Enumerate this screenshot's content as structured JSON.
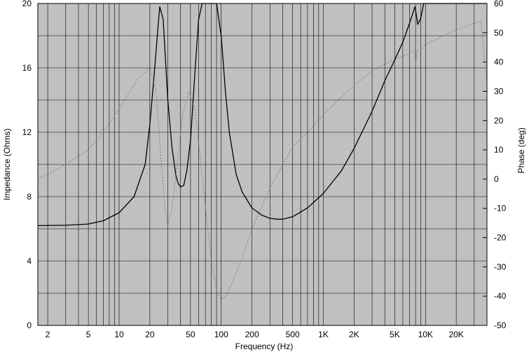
{
  "chart_data": {
    "type": "line",
    "xlabel": "Frequency (Hz)",
    "ylabel": "Impedance (Ohms)",
    "y2label": "Phase (deg)",
    "x_scale": "log",
    "xlim": [
      1.6,
      40000
    ],
    "ylim": [
      0,
      20
    ],
    "y2lim": [
      -50,
      60
    ],
    "grid": true,
    "x_ticks": [
      {
        "value": 2,
        "label": "2"
      },
      {
        "value": 5,
        "label": "5"
      },
      {
        "value": 10,
        "label": "10"
      },
      {
        "value": 20,
        "label": "20"
      },
      {
        "value": 50,
        "label": "50"
      },
      {
        "value": 100,
        "label": "100"
      },
      {
        "value": 200,
        "label": "200"
      },
      {
        "value": 500,
        "label": "500"
      },
      {
        "value": 1000,
        "label": "1K"
      },
      {
        "value": 2000,
        "label": "2K"
      },
      {
        "value": 5000,
        "label": "5K"
      },
      {
        "value": 10000,
        "label": "10K"
      },
      {
        "value": 20000,
        "label": "20K"
      }
    ],
    "y_ticks": [
      {
        "value": 0,
        "label": "0"
      },
      {
        "value": 4,
        "label": "4"
      },
      {
        "value": 8,
        "label": "8"
      },
      {
        "value": 12,
        "label": "12"
      },
      {
        "value": 16,
        "label": "16"
      },
      {
        "value": 20,
        "label": "20"
      }
    ],
    "y2_ticks": [
      {
        "value": 60,
        "label": "60"
      },
      {
        "value": 50,
        "label": "50"
      },
      {
        "value": 40,
        "label": "40"
      },
      {
        "value": 30,
        "label": "30"
      },
      {
        "value": 20,
        "label": "20"
      },
      {
        "value": 10,
        "label": "10"
      },
      {
        "value": 0,
        "label": "0"
      },
      {
        "value": -10,
        "label": "-10"
      },
      {
        "value": -20,
        "label": "-20"
      },
      {
        "value": -30,
        "label": "-30"
      },
      {
        "value": -40,
        "label": "-40"
      },
      {
        "value": -50,
        "label": "-50"
      }
    ],
    "series": [
      {
        "axis": "left",
        "style": "solid",
        "color": "#000000",
        "x": [
          1.6,
          3,
          5,
          7,
          10,
          14,
          18,
          20,
          22,
          24,
          25,
          27,
          30,
          33,
          36,
          38,
          40,
          43,
          46,
          50,
          55,
          60,
          65,
          70,
          80,
          90,
          100,
          110,
          120,
          140,
          160,
          200,
          250,
          300,
          350,
          400,
          500,
          700,
          1000,
          1500,
          2000,
          3000,
          4000,
          5000,
          6000,
          7000,
          7900,
          8400,
          9000,
          9600,
          10000,
          20000,
          40000
        ],
        "y": [
          6.2,
          6.22,
          6.3,
          6.5,
          7.0,
          8.0,
          10.0,
          12.5,
          15.5,
          18.5,
          19.8,
          19.0,
          14.0,
          11.0,
          9.3,
          8.8,
          8.6,
          8.7,
          9.6,
          11.5,
          15.5,
          19.0,
          20,
          20,
          20,
          20,
          18.0,
          14.5,
          12.0,
          9.4,
          8.3,
          7.3,
          6.85,
          6.65,
          6.6,
          6.6,
          6.75,
          7.3,
          8.2,
          9.6,
          11.0,
          13.3,
          15.2,
          16.5,
          17.6,
          18.8,
          19.8,
          18.7,
          19.1,
          20,
          20,
          20,
          20
        ]
      },
      {
        "axis": "right",
        "style": "dotted",
        "color": "#808080",
        "x": [
          1.6,
          3,
          5,
          7,
          10,
          15,
          20,
          23,
          26,
          28,
          30,
          33,
          37,
          42,
          48,
          55,
          62,
          70,
          80,
          90,
          100,
          110,
          130,
          160,
          200,
          260,
          300,
          400,
          500,
          700,
          1000,
          1500,
          2000,
          3000,
          5000,
          7000,
          7800,
          8000,
          8300,
          9000,
          10000,
          20000,
          35000,
          40000
        ],
        "y": [
          0,
          5,
          10,
          16,
          24,
          34,
          38,
          30,
          5,
          -9,
          -16,
          -10,
          5,
          22,
          30,
          24,
          8,
          -10,
          -28,
          -38,
          -41,
          -40,
          -35,
          -27,
          -17,
          -8,
          -3,
          5,
          11,
          16,
          22,
          28,
          32,
          37,
          41,
          43,
          44,
          39,
          44,
          44,
          46,
          51,
          54,
          33
        ]
      }
    ]
  }
}
